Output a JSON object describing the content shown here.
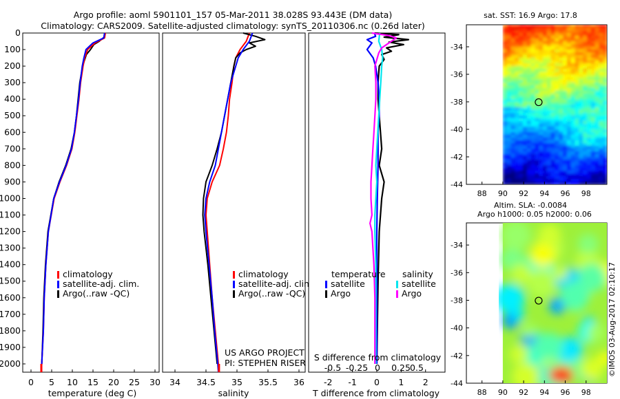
{
  "header": {
    "title_line1": "Argo profile: aoml 5901101_157 05-Mar-2011 38.028S 93.443E (DM data)",
    "title_line2": "Climatology: CARS2009. Satellite-adjusted climatology: synTS_20110306.nc (0.26d later)"
  },
  "colors": {
    "climatology": "#ff0000",
    "satellite_adj": "#0000ff",
    "argo": "#000000",
    "sat_salinity": "#00e5ee",
    "argo_salinity": "#ff00ff"
  },
  "side_text": {
    "project": "US ARGO PROJECT",
    "pi": "PI: STEPHEN RISER",
    "credit": "©IMOS 03-Aug-2017 02:10:17"
  },
  "chart_data": [
    {
      "type": "line",
      "xlabel": "temperature (deg C)",
      "xlim": [
        -2,
        31
      ],
      "xticks": [
        0,
        5,
        10,
        15,
        20,
        25,
        30
      ],
      "ylim": [
        2050,
        0
      ],
      "yticks": [
        0,
        100,
        200,
        300,
        400,
        500,
        600,
        700,
        800,
        900,
        1000,
        1100,
        1200,
        1300,
        1400,
        1500,
        1600,
        1700,
        1800,
        1900,
        2000
      ],
      "legend": [
        "climatology",
        "satellite-adj. clim.",
        "Argo(..raw -QC)"
      ],
      "series": [
        {
          "name": "climatology",
          "depth": [
            0,
            30,
            60,
            100,
            150,
            200,
            300,
            400,
            500,
            600,
            700,
            800,
            900,
            1000,
            1200,
            1400,
            1600,
            1800,
            2000,
            2050
          ],
          "values": [
            18.0,
            17.8,
            15.5,
            13.7,
            13.0,
            12.6,
            12.0,
            11.6,
            11.1,
            10.6,
            9.9,
            8.6,
            7.0,
            5.6,
            4.2,
            3.6,
            3.2,
            3.0,
            2.6,
            2.5
          ]
        },
        {
          "name": "satellite-adj. clim.",
          "depth": [
            0,
            30,
            60,
            100,
            150,
            200,
            300,
            400,
            500,
            600,
            700,
            800,
            900,
            1000,
            1200,
            1400,
            1600,
            1800,
            2000,
            2050
          ],
          "values": [
            17.8,
            17.6,
            15.0,
            13.3,
            12.8,
            12.4,
            11.9,
            11.5,
            11.0,
            10.5,
            9.8,
            8.5,
            6.9,
            5.5,
            4.2,
            3.6,
            3.2,
            3.0,
            2.6,
            2.5
          ]
        },
        {
          "name": "Argo(..raw -QC)",
          "depth": [
            0,
            25,
            50,
            70,
            100,
            130,
            160,
            200,
            300,
            400,
            500,
            600,
            700,
            800,
            900,
            1000,
            1200,
            1400,
            1600,
            1800,
            2000
          ],
          "values": [
            17.9,
            17.7,
            16.5,
            15.2,
            14.4,
            13.4,
            13.0,
            12.5,
            11.8,
            11.4,
            11.0,
            10.5,
            9.7,
            8.4,
            6.8,
            5.5,
            4.1,
            3.5,
            3.1,
            2.9,
            2.6
          ]
        }
      ]
    },
    {
      "type": "line",
      "xlabel": "salinity",
      "xlim": [
        33.8,
        36.1
      ],
      "xticks": [
        34,
        34.5,
        35,
        35.5,
        36
      ],
      "ylim": [
        2050,
        0
      ],
      "legend": [
        "climatology",
        "satellite-adj. clim.",
        "Argo(..raw -QC)"
      ],
      "series": [
        {
          "name": "climatology",
          "depth": [
            0,
            50,
            100,
            150,
            200,
            300,
            400,
            500,
            600,
            700,
            800,
            900,
            1000,
            1100,
            1200,
            1400,
            1600,
            1800,
            2000,
            2050
          ],
          "values": [
            35.2,
            35.15,
            35.05,
            34.98,
            34.95,
            34.92,
            34.88,
            34.86,
            34.83,
            34.78,
            34.72,
            34.6,
            34.52,
            34.5,
            34.52,
            34.56,
            34.6,
            34.65,
            34.7,
            34.71
          ]
        },
        {
          "name": "satellite-adj. clim.",
          "depth": [
            0,
            50,
            100,
            150,
            200,
            300,
            400,
            500,
            600,
            700,
            800,
            900,
            1000,
            1100,
            1200,
            1400,
            1600,
            1800,
            2000,
            2050
          ],
          "values": [
            35.25,
            35.2,
            35.1,
            35.02,
            34.98,
            34.9,
            34.85,
            34.8,
            34.75,
            34.7,
            34.65,
            34.56,
            34.5,
            34.48,
            34.5,
            34.55,
            34.6,
            34.64,
            34.69,
            34.7
          ]
        },
        {
          "name": "Argo(..raw -QC)",
          "depth": [
            0,
            20,
            40,
            60,
            80,
            100,
            120,
            150,
            200,
            300,
            400,
            500,
            600,
            700,
            800,
            900,
            1000,
            1100,
            1200,
            1400,
            1600,
            1800,
            2000
          ],
          "values": [
            35.1,
            35.3,
            35.45,
            35.2,
            35.3,
            35.15,
            35.05,
            34.98,
            34.95,
            34.9,
            34.85,
            34.8,
            34.75,
            34.68,
            34.6,
            34.5,
            34.46,
            34.45,
            34.47,
            34.53,
            34.58,
            34.63,
            34.68
          ]
        }
      ]
    },
    {
      "type": "line",
      "xlabel_top": "S difference from climatology",
      "xlabel": "T difference from climatology",
      "xlim": [
        -2.8,
        2.8
      ],
      "xticks": [
        -2,
        -1,
        0,
        1,
        2
      ],
      "top_ticks": [
        "-0.5",
        "-0.25",
        "0",
        "0.25",
        "0.5"
      ],
      "ylim": [
        2050,
        0
      ],
      "legend_titles": [
        "temperature",
        "salinity"
      ],
      "legend": [
        "satellite",
        "Argo",
        "satellite",
        "Argo"
      ],
      "series": [
        {
          "name": "satellite",
          "group": "temperature",
          "depth": [
            0,
            20,
            40,
            60,
            80,
            100,
            150,
            200,
            300,
            400,
            500,
            600,
            800,
            1000,
            1200,
            1500,
            1800,
            2000
          ],
          "values": [
            -0.1,
            -0.05,
            -0.4,
            -0.2,
            -0.3,
            -0.4,
            -0.15,
            -0.05,
            0.05,
            0.1,
            0.1,
            0.05,
            0.05,
            0.02,
            0.0,
            0.0,
            0.0,
            0.0
          ]
        },
        {
          "name": "Argo",
          "group": "temperature",
          "depth": [
            0,
            10,
            25,
            40,
            55,
            70,
            90,
            110,
            130,
            160,
            200,
            300,
            400,
            500,
            600,
            700,
            800,
            900,
            1000,
            1200,
            1500,
            1800,
            2000
          ],
          "values": [
            -0.1,
            0.9,
            0.3,
            1.3,
            0.5,
            1.1,
            0.4,
            0.6,
            0.2,
            0.3,
            0.1,
            0.05,
            0.05,
            0.1,
            0.15,
            0.2,
            0.1,
            0.3,
            0.2,
            0.1,
            0.05,
            0.02,
            0.0
          ]
        },
        {
          "name": "satellite",
          "group": "salinity",
          "depth": [
            0,
            50,
            100,
            150,
            200,
            300,
            400,
            500,
            600,
            700,
            800,
            900,
            1000,
            1100,
            1200,
            1400,
            1600,
            1800,
            2000
          ],
          "values": [
            0.03,
            0.02,
            0.05,
            0.06,
            0.05,
            0.04,
            0.03,
            0.02,
            0.01,
            0.0,
            -0.01,
            0.0,
            -0.01,
            -0.02,
            -0.02,
            -0.01,
            -0.01,
            -0.01,
            -0.01
          ]
        },
        {
          "name": "Argo",
          "group": "salinity",
          "depth": [
            0,
            15,
            30,
            50,
            70,
            90,
            120,
            160,
            200,
            300,
            400,
            500,
            600,
            700,
            800,
            900,
            1000,
            1100,
            1150,
            1200,
            1300,
            1400,
            1600,
            1800,
            2000
          ],
          "values": [
            -0.05,
            0.12,
            0.2,
            0.15,
            0.1,
            0.05,
            0.02,
            0.0,
            -0.02,
            -0.01,
            -0.01,
            -0.02,
            -0.03,
            -0.04,
            -0.05,
            -0.06,
            -0.06,
            -0.05,
            -0.07,
            -0.05,
            -0.04,
            -0.03,
            -0.02,
            -0.02,
            -0.02
          ]
        }
      ]
    },
    {
      "type": "heatmap",
      "title": "sat. SST: 16.9 Argo: 17.8",
      "xticks": [
        88,
        90,
        92,
        94,
        96,
        98
      ],
      "yticks": [
        -34,
        -36,
        -38,
        -40,
        -42,
        -44
      ],
      "xlim": [
        86.5,
        100
      ],
      "ylim": [
        -44,
        -32.4
      ],
      "data_lon_range": [
        90,
        100
      ],
      "marker": {
        "lon": 93.443,
        "lat": -38.028
      }
    },
    {
      "type": "heatmap",
      "title_line1": "Altim. SLA: -0.0084",
      "title_line2": "Argo h1000: 0.05 h2000: 0.06",
      "xticks": [
        88,
        90,
        92,
        94,
        96,
        98
      ],
      "yticks": [
        -34,
        -36,
        -38,
        -40,
        -42,
        -44
      ],
      "xlim": [
        86.5,
        100
      ],
      "ylim": [
        -44,
        -32.4
      ],
      "data_lon_range": [
        90,
        100
      ],
      "marker": {
        "lon": 93.443,
        "lat": -38.028
      }
    }
  ]
}
